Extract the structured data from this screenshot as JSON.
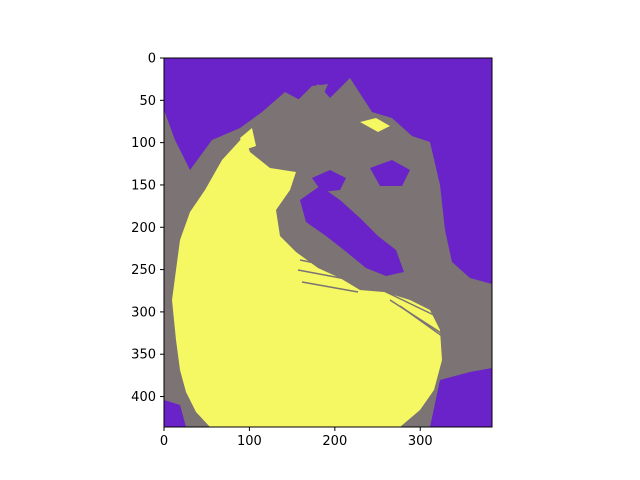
{
  "chart_data": {
    "type": "image",
    "title": "",
    "xlabel": "",
    "ylabel": "",
    "image_width": 384,
    "image_height": 436,
    "xlim": [
      0,
      384
    ],
    "ylim": [
      436,
      0
    ],
    "x_ticks": [
      "0",
      "100",
      "200",
      "300"
    ],
    "y_ticks": [
      "0",
      "50",
      "100",
      "150",
      "200",
      "250",
      "300",
      "350",
      "400"
    ],
    "legend": "none",
    "grid": false,
    "colors": {
      "background_region": "#6a23c8",
      "mid_region": "#7b7374",
      "highlight_region": "#f5f763",
      "axes_frame": "#000000"
    },
    "description_levels": [
      "purple",
      "gray",
      "yellow"
    ]
  }
}
